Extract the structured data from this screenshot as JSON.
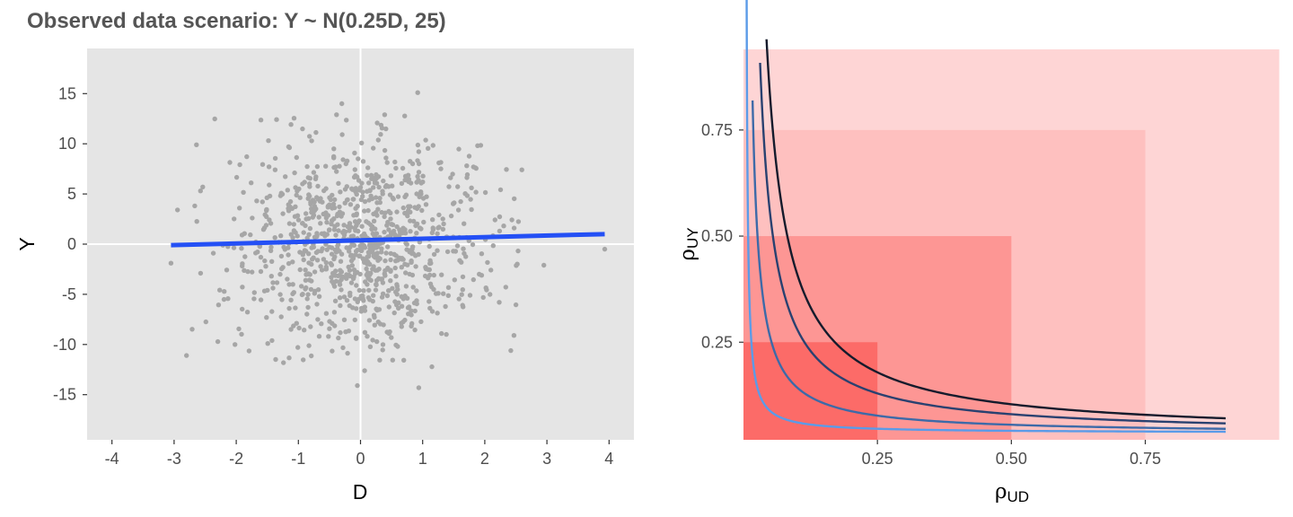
{
  "title": "Observed data scenario: Y ~ N(0.25D, 25)",
  "colors": {
    "panel_bg": "#e5e5e5",
    "grid": "#ffffff",
    "points": "#a6a6a6",
    "fit_line": "#2450f5",
    "tick_mark": "#333333",
    "region_fills": [
      "#fed5d5",
      "#fec0bf",
      "#fd9694",
      "#fc6b68"
    ],
    "contour_colors": [
      "#5b9be8",
      "#3d6aa8",
      "#2a4170",
      "#151b2c"
    ]
  },
  "chart_data": [
    {
      "type": "scatter",
      "xlabel": "D",
      "ylabel": "Y",
      "xlim": [
        -4.4,
        4.4
      ],
      "ylim": [
        -19.5,
        19.5
      ],
      "xticks": [
        -4,
        -3,
        -2,
        -1,
        0,
        1,
        2,
        3,
        4
      ],
      "xtick_labels": [
        "-4",
        "-3",
        "-2",
        "-1",
        "0",
        "1",
        "2",
        "3",
        "4"
      ],
      "yticks": [
        -15,
        -10,
        -5,
        0,
        5,
        10,
        15
      ],
      "ytick_labels": [
        "-15",
        "-10",
        "-5",
        "0",
        "5",
        "10",
        "15"
      ],
      "reference_lines": {
        "x": 0,
        "y": 0
      },
      "n_points_approx": 1000,
      "points_distribution": {
        "D": "approximately N(0, 1)",
        "Y": "approximately N(0.25D, 25)"
      },
      "extreme_points": [
        {
          "x": 3.93,
          "y": -0.5
        },
        {
          "x": -3.05,
          "y": -1.9
        },
        {
          "x": -2.8,
          "y": -11.1
        },
        {
          "x": 0.92,
          "y": 15.1
        },
        {
          "x": -0.3,
          "y": 14.0
        },
        {
          "x": -0.05,
          "y": -14.1
        },
        {
          "x": 2.47,
          "y": -9.1
        },
        {
          "x": 2.95,
          "y": -2.1
        }
      ],
      "fit_line": {
        "x": [
          -3.05,
          3.93
        ],
        "y": [
          -0.1,
          1.0
        ]
      }
    },
    {
      "type": "line",
      "xlabel": "ρ",
      "xlabel_sub": "UD",
      "ylabel": "ρ",
      "ylabel_sub": "UY",
      "xlim": [
        0,
        0.9
      ],
      "ylim": [
        0.02,
        0.94
      ],
      "xticks": [
        0.25,
        0.5,
        0.75
      ],
      "xtick_labels": [
        "0.25",
        "0.50",
        "0.75"
      ],
      "yticks": [
        0.25,
        0.5,
        0.75
      ],
      "ytick_labels": [
        "0.25",
        "0.50",
        "0.75"
      ],
      "regions": [
        {
          "xmax": 1.0,
          "ymax": 1.0
        },
        {
          "xmax": 0.75,
          "ymax": 0.75
        },
        {
          "xmax": 0.5,
          "ymax": 0.5
        },
        {
          "xmax": 0.25,
          "ymax": 0.25
        }
      ],
      "series": [
        {
          "model": "y*(x-0.0036)=0.00225+0.0364*x",
          "x_start": 0.005,
          "x_end": 0.9,
          "y_end": 0.0335
        },
        {
          "model": "y*(x-0.0036)=0.0104+0.0342*x",
          "x_start": 0.017,
          "x_end": 0.9,
          "y_end": 0.0461
        },
        {
          "model": "y*(x-0.0036)=0.0239+0.0319*x",
          "x_start": 0.031,
          "x_end": 0.9,
          "y_end": 0.0586
        },
        {
          "model": "y*(x-0.0036)=0.0367+0.0296*x",
          "x_start": 0.043,
          "x_end": 0.9,
          "y_end": 0.0707
        }
      ]
    }
  ]
}
